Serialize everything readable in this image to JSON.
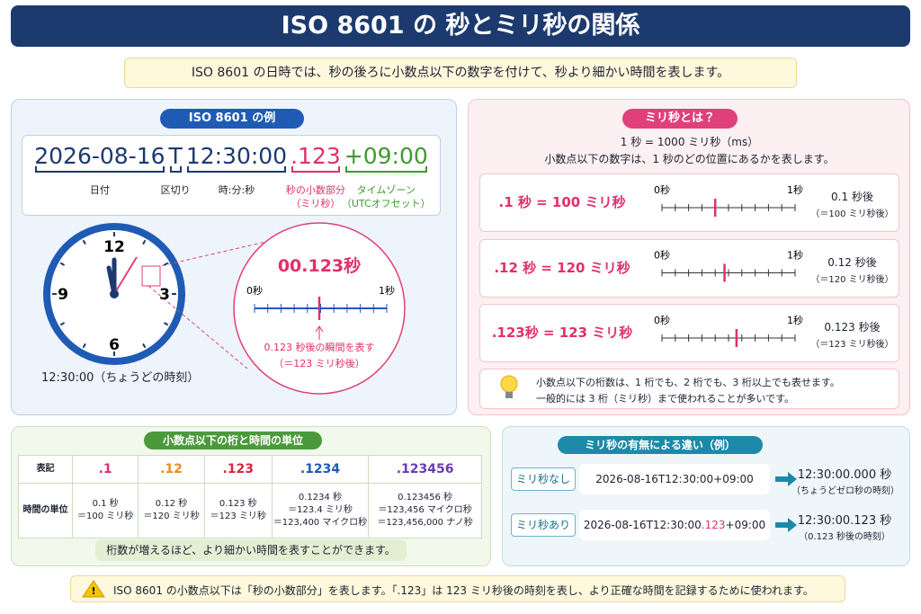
{
  "title": "ISO 8601 の 秒とミリ秒の関係",
  "intro": "ISO 8601 の日時では、秒の後ろに小数点以下の数字を付けて、秒より細かい時間を表します。",
  "example": {
    "heading": "ISO 8601 の例",
    "parts": [
      {
        "text": "2026-08-16",
        "labels": [
          "日付"
        ],
        "color": "#1c3a6e"
      },
      {
        "text": "T",
        "labels": [
          "区切り"
        ],
        "color": "#1c3a6e"
      },
      {
        "text": "12:30:00",
        "labels": [
          "時:分:秒"
        ],
        "color": "#1c3a6e"
      },
      {
        "text": ".123",
        "labels": [
          "秒の小数部分",
          "（ミリ秒）"
        ],
        "color": "#e0306a"
      },
      {
        "text": "+09:00",
        "labels": [
          "タイムゾーン",
          "（UTCオフセット）"
        ],
        "color": "#3f9a2e"
      }
    ]
  },
  "clock": {
    "numbers": [
      "12",
      "3",
      "6",
      "9"
    ],
    "caption": "12:30:00（ちょうどの時刻）"
  },
  "zoom": {
    "value": "00.123秒",
    "start": "0秒",
    "end": "1秒",
    "note": [
      "0.123 秒後の瞬間を表す",
      "（＝123 ミリ秒後）"
    ]
  },
  "millis": {
    "heading": "ミリ秒とは？",
    "lines": [
      "1 秒 = 1000 ミリ秒（ms）",
      "小数点以下の数字は、1 秒のどの位置にあるかを表します。"
    ],
    "rows": [
      {
        "label": ".1 秒 = 100 ミリ秒",
        "start": "0秒",
        "end": "1秒",
        "result": "0.1 秒後",
        "sub": "（＝100 ミリ秒後）"
      },
      {
        "label": ".12 秒 = 120 ミリ秒",
        "start": "0秒",
        "end": "1秒",
        "result": "0.12 秒後",
        "sub": "（＝120 ミリ秒後）"
      },
      {
        "label": ".123秒 = 123 ミリ秒",
        "start": "0秒",
        "end": "1秒",
        "result": "0.123 秒後",
        "sub": "（＝123 ミリ秒後）"
      }
    ],
    "tip": [
      "小数点以下の桁数は、1 桁でも、2 桁でも、3 桁以上でも表せます。",
      "一般的には 3 桁（ミリ秒）まで使われることが多いです。"
    ]
  },
  "digits": {
    "heading": "小数点以下の桁と時間の単位",
    "row_header": [
      "表記",
      "時間の単位"
    ],
    "columns": [
      {
        "notation": ".1",
        "color": "#e0306a",
        "unit": [
          "0.1 秒",
          "＝100 ミリ秒"
        ]
      },
      {
        "notation": ".12",
        "color": "#f08a1c",
        "unit": [
          "0.12 秒",
          "＝120 ミリ秒"
        ]
      },
      {
        "notation": ".123",
        "color": "#d9263f",
        "unit": [
          "0.123 秒",
          "＝123 ミリ秒"
        ]
      },
      {
        "notation": ".1234",
        "color": "#1f5bb5",
        "unit": [
          "0.1234 秒",
          "＝123.4 ミリ秒",
          "＝123,400 マイクロ秒"
        ]
      },
      {
        "notation": ".123456",
        "color": "#6a3bb0",
        "unit": [
          "0.123456 秒",
          "＝123,456 マイクロ秒",
          "＝123,456,000 ナノ秒"
        ]
      }
    ],
    "footer": "桁数が増えるほど、より細かい時間を表すことができます。"
  },
  "compare": {
    "heading": "ミリ秒の有無による違い（例）",
    "rows": [
      {
        "tag": "ミリ秒なし",
        "input": [
          "2026-08-16T12:30:00+09:00"
        ],
        "result": "12:30:00.000 秒",
        "note": "（ちょうどゼロ秒の時刻）"
      },
      {
        "tag": "ミリ秒あり",
        "input": [
          "2026-08-16T12:30:00",
          ".123",
          "+09:00"
        ],
        "result": "12:30:00.123 秒",
        "note": "（0.123 秒後の時刻）"
      }
    ]
  },
  "note": "ISO 8601 の小数点以下は「秒の小数部分」を表します。「.123」は 123 ミリ秒後の時刻を表し、より正確な時間を記録するために使われます。"
}
